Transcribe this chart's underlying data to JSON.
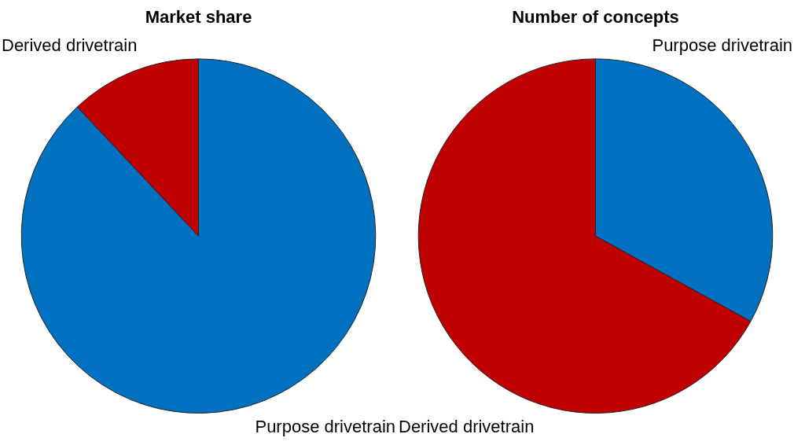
{
  "chart_data": [
    {
      "type": "pie",
      "title": "Market share",
      "categories": [
        "Purpose drivetrain",
        "Derived drivetrain"
      ],
      "values": [
        88,
        12
      ],
      "colors": [
        "#0070c0",
        "#c00000"
      ]
    },
    {
      "type": "pie",
      "title": "Number of concepts",
      "categories": [
        "Purpose drivetrain",
        "Derived drivetrain"
      ],
      "values": [
        33,
        67
      ],
      "colors": [
        "#0070c0",
        "#c00000"
      ]
    }
  ]
}
